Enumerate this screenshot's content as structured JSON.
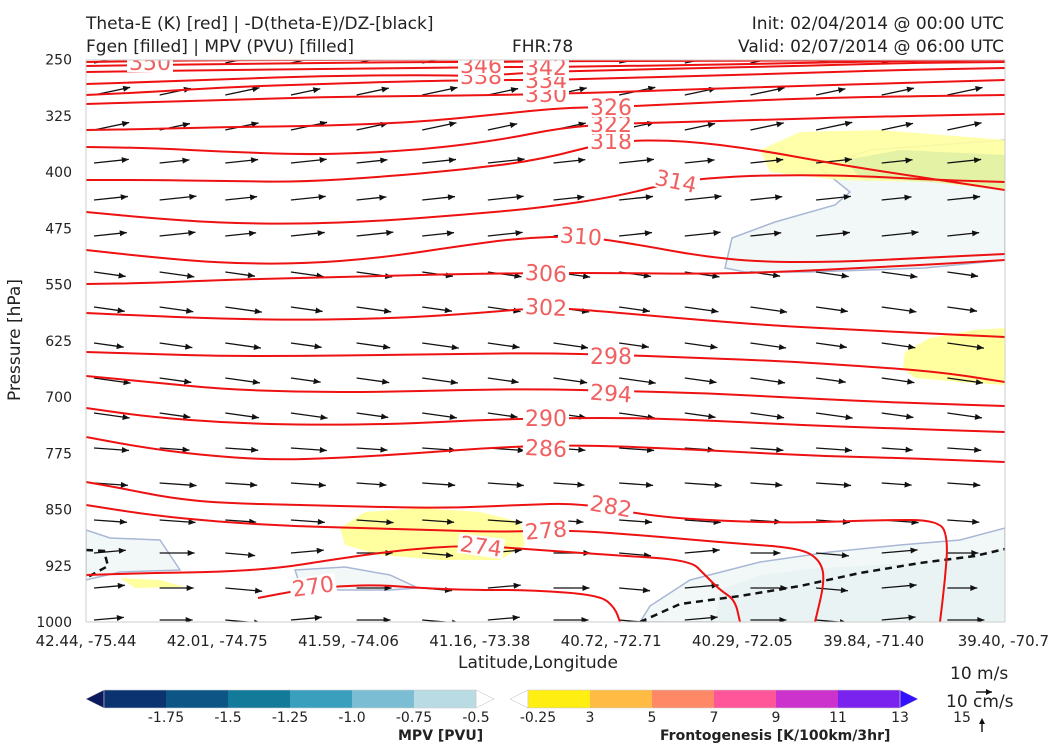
{
  "header": {
    "title_left_1": "Theta-E (K) [red] | -D(theta-E)/DZ-[black]",
    "title_left_2": "Fgen [filled] | MPV (PVU) [filled]",
    "fhr": "FHR:78",
    "init": "Init: 02/04/2014 @ 00:00 UTC",
    "valid": "Valid: 02/07/2014 @ 06:00 UTC"
  },
  "chart_data": {
    "type": "cross-section",
    "xlabel": "Latitude,Longitude",
    "ylabel": "Pressure [hPa]",
    "x_ticks": [
      "42.44, -75.44",
      "42.01, -74.75",
      "41.59, -74.06",
      "41.16, -73.38",
      "40.72, -72.71",
      "40.29, -72.05",
      "39.84, -71.40",
      "39.40, -70.7"
    ],
    "y_ticks": [
      "250",
      "325",
      "400",
      "475",
      "550",
      "625",
      "700",
      "775",
      "850",
      "925",
      "1000"
    ],
    "ylim": [
      1000,
      200
    ],
    "theta_e_color": "#ee1111",
    "theta_e_contours": [
      {
        "value": 270,
        "label": "270"
      },
      {
        "value": 274,
        "label": "274"
      },
      {
        "value": 278,
        "label": "278"
      },
      {
        "value": 282,
        "label": "282"
      },
      {
        "value": 286,
        "label": "286"
      },
      {
        "value": 290,
        "label": "290"
      },
      {
        "value": 294,
        "label": "294"
      },
      {
        "value": 298,
        "label": "298"
      },
      {
        "value": 302,
        "label": "302"
      },
      {
        "value": 306,
        "label": "306"
      },
      {
        "value": 310,
        "label": "310"
      },
      {
        "value": 314,
        "label": "314"
      },
      {
        "value": 318,
        "label": "318"
      },
      {
        "value": 322,
        "label": "322"
      },
      {
        "value": 326,
        "label": "326"
      },
      {
        "value": 330,
        "label": "330"
      },
      {
        "value": 334,
        "label": "334"
      },
      {
        "value": 338,
        "label": "338"
      },
      {
        "value": 342,
        "label": "342"
      },
      {
        "value": 346,
        "label": "346"
      },
      {
        "value": 350,
        "label": "350"
      }
    ],
    "mpv_colorbar": {
      "label": "MPV [PVU]",
      "ticks": [
        "-1.75",
        "-1.5",
        "-1.25",
        "-1.0",
        "-0.75",
        "-0.5",
        "-0.25"
      ],
      "colors": [
        "#0a1a5c",
        "#0b3370",
        "#0d5585",
        "#137a9a",
        "#3a9fbd",
        "#7bbdd2",
        "#b9dce4",
        "#ffffff"
      ]
    },
    "fgen_colorbar": {
      "label": "Frontogenesis [K/100km/3hr]",
      "ticks": [
        "3",
        "5",
        "7",
        "9",
        "11",
        "13",
        "15"
      ],
      "colors": [
        "#ffffff",
        "#ffee11",
        "#ffbb44",
        "#ff8866",
        "#ff5599",
        "#cc33cc",
        "#7a22ee",
        "#3311ff"
      ]
    },
    "wind_ref": {
      "horizontal": "10 m/s",
      "vertical": "10 cm/s"
    }
  }
}
